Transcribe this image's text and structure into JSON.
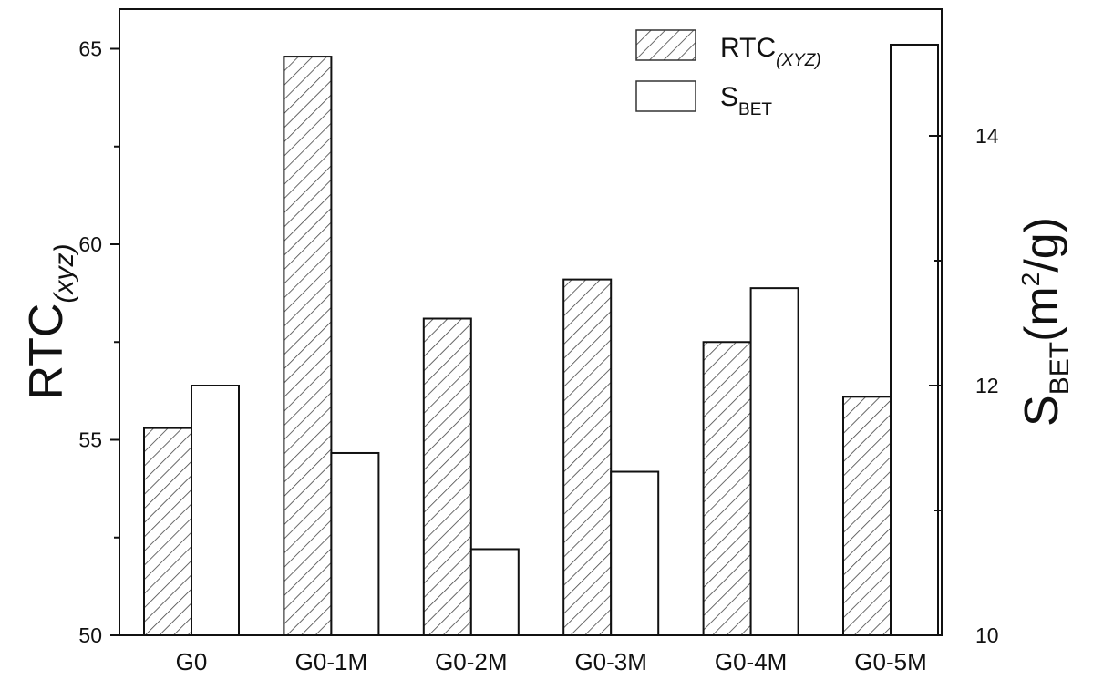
{
  "chart_data": {
    "type": "bar",
    "categories": [
      "G0",
      "G0-1M",
      "G0-2M",
      "G0-3M",
      "G0-4M",
      "G0-5M"
    ],
    "series": [
      {
        "name": "RTC",
        "name_sub": "(XYZ)",
        "axis": "left",
        "pattern": "hatched",
        "values": [
          55.3,
          64.8,
          58.1,
          59.1,
          57.5,
          56.1
        ]
      },
      {
        "name": "S",
        "name_sub": "BET",
        "axis": "right",
        "pattern": "open",
        "values": [
          12.0,
          11.46,
          10.69,
          11.31,
          12.78,
          14.73
        ]
      }
    ],
    "ylabel_left": {
      "main": "RTC",
      "sub": "(xyz)"
    },
    "ylabel_right": {
      "main": "S",
      "sub": "BET",
      "unit_open": "(m",
      "unit_sup": "2",
      "unit_close": "/g)"
    },
    "ylim_left": [
      50,
      66.5
    ],
    "yticks_left": [
      "50",
      "55",
      "60",
      "65"
    ],
    "ylim_right": [
      10,
      14.95
    ],
    "yticks_right": [
      "10",
      "12",
      "14"
    ],
    "legend_position": "top-right",
    "grid": false,
    "colors": {
      "axis": "#111111",
      "hatch": "#444444",
      "fill": "#ffffff"
    }
  }
}
